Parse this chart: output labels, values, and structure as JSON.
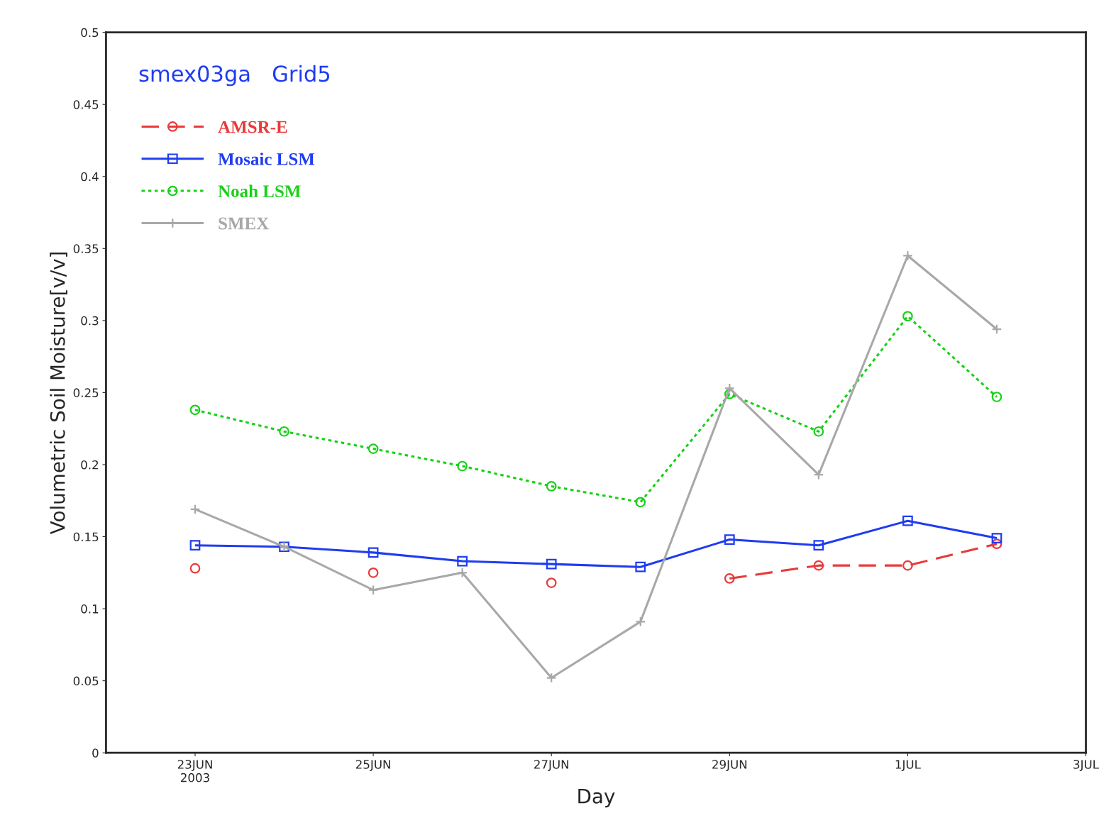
{
  "chart_data": {
    "type": "line",
    "title": "smex03ga   Grid5",
    "xlabel": "Day",
    "ylabel": "Volumetric Soil Moisture[v/v]",
    "x": [
      "2003-06-23",
      "2003-06-24",
      "2003-06-25",
      "2003-06-26",
      "2003-06-27",
      "2003-06-28",
      "2003-06-29",
      "2003-06-30",
      "2003-07-01",
      "2003-07-02"
    ],
    "series": [
      {
        "name": "AMSR-E",
        "color": "#e83a3a",
        "marker": "circle",
        "line_style": "dashed",
        "values": [
          0.128,
          null,
          0.125,
          null,
          0.118,
          null,
          0.121,
          0.13,
          0.13,
          0.145
        ]
      },
      {
        "name": "Mosaic LSM",
        "color": "#1f3cf0",
        "marker": "square",
        "line_style": "solid",
        "values": [
          0.144,
          0.143,
          0.139,
          0.133,
          0.131,
          0.129,
          0.148,
          0.144,
          0.161,
          0.149
        ]
      },
      {
        "name": "Noah LSM",
        "color": "#19d019",
        "marker": "circle",
        "line_style": "dotted",
        "values": [
          0.238,
          0.223,
          0.211,
          0.199,
          0.185,
          0.174,
          0.249,
          0.223,
          0.303,
          0.247
        ]
      },
      {
        "name": "SMEX",
        "color": "#a8a8a8",
        "marker": "cross",
        "line_style": "solid",
        "values": [
          0.169,
          0.143,
          0.113,
          0.125,
          0.052,
          0.091,
          0.253,
          0.193,
          0.345,
          0.294
        ]
      }
    ],
    "xlim": [
      "2003-06-22",
      "2003-07-03"
    ],
    "xticks": [
      {
        "value": "2003-06-23",
        "label": "23JUN\n2003"
      },
      {
        "value": "2003-06-25",
        "label": "25JUN"
      },
      {
        "value": "2003-06-27",
        "label": "27JUN"
      },
      {
        "value": "2003-06-29",
        "label": "29JUN"
      },
      {
        "value": "2003-07-01",
        "label": "1JUL"
      },
      {
        "value": "2003-07-03",
        "label": "3JUL"
      }
    ],
    "ylim": [
      0,
      0.5
    ],
    "yticks": [
      0,
      0.05,
      0.1,
      0.15,
      0.2,
      0.25,
      0.3,
      0.35,
      0.4,
      0.45,
      0.5
    ],
    "grid": false,
    "legend": "top left"
  }
}
